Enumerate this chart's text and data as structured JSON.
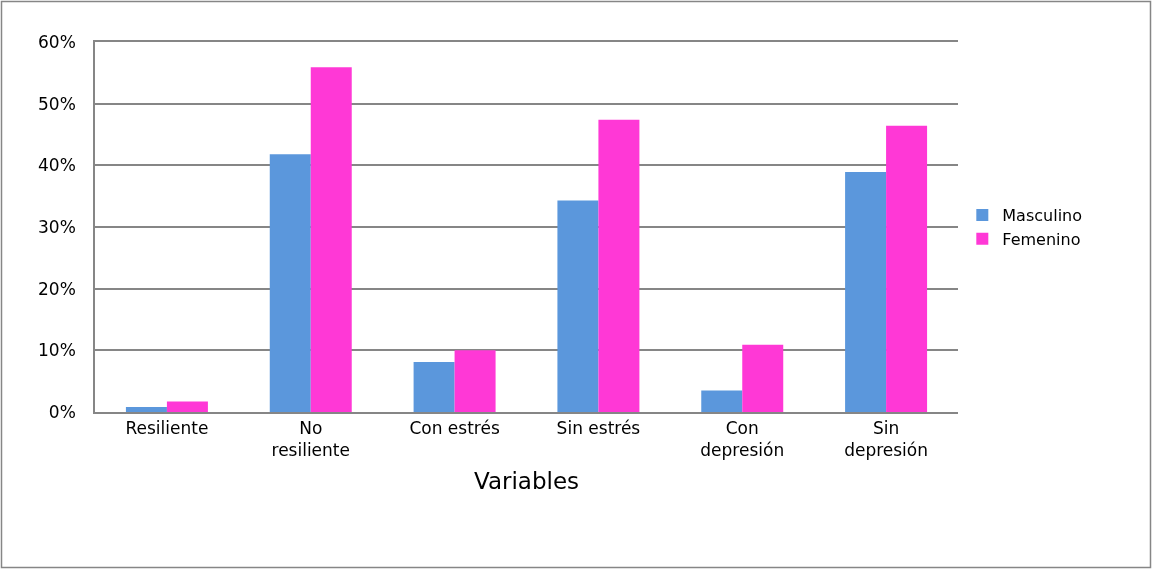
{
  "chart_data": {
    "type": "bar",
    "xlabel": "Variables",
    "categories": [
      "Resiliente",
      "No resiliente",
      "Con estrés",
      "Sin estrés",
      "Con depresión",
      "Sin depresión"
    ],
    "series": [
      {
        "name": "Masculino",
        "color": "#5b97dc",
        "values": [
          0.8,
          41.8,
          8.1,
          34.3,
          3.5,
          38.9
        ]
      },
      {
        "name": "Femenino",
        "color": "#ff38d6",
        "values": [
          1.7,
          55.9,
          10.0,
          47.4,
          10.9,
          46.4
        ]
      }
    ],
    "ylim": [
      0,
      60
    ],
    "yticks": [
      {
        "value": 0,
        "label": "0%"
      },
      {
        "value": 10,
        "label": "10%"
      },
      {
        "value": 20,
        "label": "20%"
      },
      {
        "value": 30,
        "label": "30%"
      },
      {
        "value": 40,
        "label": "40%"
      },
      {
        "value": 50,
        "label": "50%"
      },
      {
        "value": 60,
        "label": "60%"
      }
    ],
    "grid": "y",
    "legend": "right"
  }
}
